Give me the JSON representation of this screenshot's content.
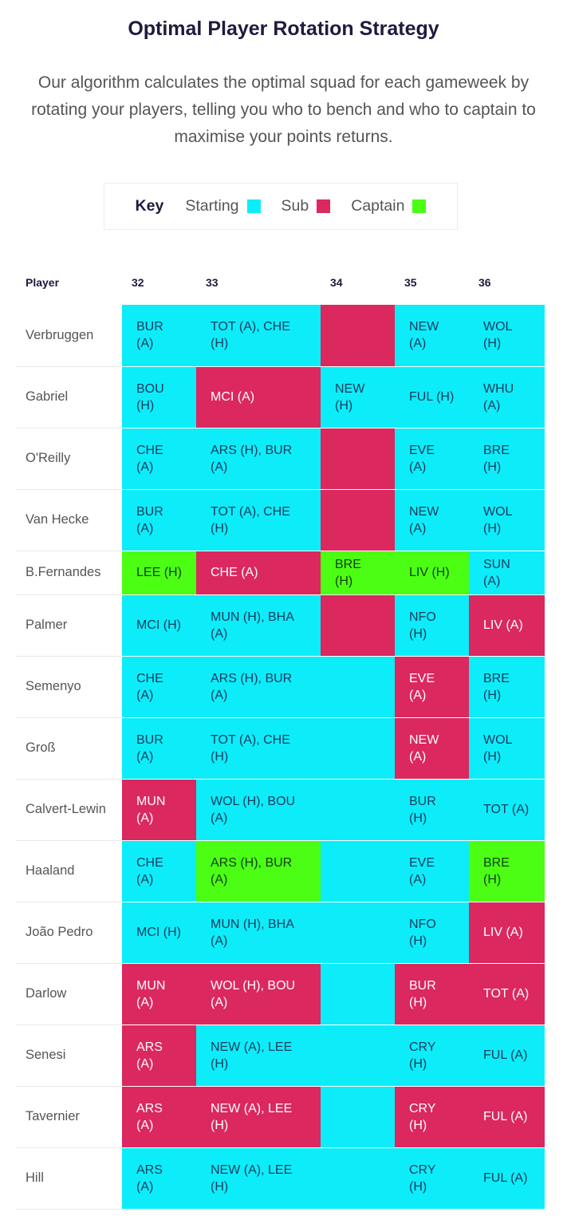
{
  "header": {
    "title": "Optimal Player Rotation Strategy",
    "description": "Our algorithm calculates the optimal squad for each gameweek by rotating your players, telling you who to bench and who to captain to maximise your points returns."
  },
  "key": {
    "label": "Key",
    "items": [
      {
        "label": "Starting",
        "color": "#0CEDF9"
      },
      {
        "label": "Sub",
        "color": "#DB285E"
      },
      {
        "label": "Captain",
        "color": "#4CFD14"
      }
    ]
  },
  "table": {
    "columns": [
      "Player",
      "32",
      "33",
      "34",
      "35",
      "36"
    ],
    "rows": [
      {
        "player": "Verbruggen",
        "cells": [
          {
            "text": "BUR (A)",
            "status": "start"
          },
          {
            "text": "TOT (A), CHE (H)",
            "status": "start"
          },
          {
            "text": "",
            "status": "sub"
          },
          {
            "text": "NEW (A)",
            "status": "start"
          },
          {
            "text": "WOL (H)",
            "status": "start"
          }
        ]
      },
      {
        "player": "Gabriel",
        "cells": [
          {
            "text": "BOU (H)",
            "status": "start"
          },
          {
            "text": "MCI (A)",
            "status": "sub"
          },
          {
            "text": "NEW (H)",
            "status": "start"
          },
          {
            "text": "FUL (H)",
            "status": "start"
          },
          {
            "text": "WHU (A)",
            "status": "start"
          }
        ]
      },
      {
        "player": "O'Reilly",
        "cells": [
          {
            "text": "CHE (A)",
            "status": "start"
          },
          {
            "text": "ARS (H), BUR (A)",
            "status": "start"
          },
          {
            "text": "",
            "status": "sub"
          },
          {
            "text": "EVE (A)",
            "status": "start"
          },
          {
            "text": "BRE (H)",
            "status": "start"
          }
        ]
      },
      {
        "player": "Van Hecke",
        "cells": [
          {
            "text": "BUR (A)",
            "status": "start"
          },
          {
            "text": "TOT (A), CHE (H)",
            "status": "start"
          },
          {
            "text": "",
            "status": "sub"
          },
          {
            "text": "NEW (A)",
            "status": "start"
          },
          {
            "text": "WOL (H)",
            "status": "start"
          }
        ]
      },
      {
        "player": "B.Fernandes",
        "cells": [
          {
            "text": "LEE (H)",
            "status": "cap"
          },
          {
            "text": "CHE (A)",
            "status": "sub"
          },
          {
            "text": "BRE (H)",
            "status": "cap"
          },
          {
            "text": "LIV (H)",
            "status": "cap"
          },
          {
            "text": "SUN (A)",
            "status": "start"
          }
        ]
      },
      {
        "player": "Palmer",
        "cells": [
          {
            "text": "MCI (H)",
            "status": "start"
          },
          {
            "text": "MUN (H), BHA (A)",
            "status": "start"
          },
          {
            "text": "",
            "status": "sub"
          },
          {
            "text": "NFO (H)",
            "status": "start"
          },
          {
            "text": "LIV (A)",
            "status": "sub"
          }
        ]
      },
      {
        "player": "Semenyo",
        "cells": [
          {
            "text": "CHE (A)",
            "status": "start"
          },
          {
            "text": "ARS (H), BUR (A)",
            "status": "start"
          },
          {
            "text": "",
            "status": "start"
          },
          {
            "text": "EVE (A)",
            "status": "sub"
          },
          {
            "text": "BRE (H)",
            "status": "start"
          }
        ]
      },
      {
        "player": "Groß",
        "cells": [
          {
            "text": "BUR (A)",
            "status": "start"
          },
          {
            "text": "TOT (A), CHE (H)",
            "status": "start"
          },
          {
            "text": "",
            "status": "start"
          },
          {
            "text": "NEW (A)",
            "status": "sub"
          },
          {
            "text": "WOL (H)",
            "status": "start"
          }
        ]
      },
      {
        "player": "Calvert-Lewin",
        "cells": [
          {
            "text": "MUN (A)",
            "status": "sub"
          },
          {
            "text": "WOL (H), BOU (A)",
            "status": "start"
          },
          {
            "text": "",
            "status": "start"
          },
          {
            "text": "BUR (H)",
            "status": "start"
          },
          {
            "text": "TOT (A)",
            "status": "start"
          }
        ]
      },
      {
        "player": "Haaland",
        "cells": [
          {
            "text": "CHE (A)",
            "status": "start"
          },
          {
            "text": "ARS (H), BUR (A)",
            "status": "cap"
          },
          {
            "text": "",
            "status": "start"
          },
          {
            "text": "EVE (A)",
            "status": "start"
          },
          {
            "text": "BRE (H)",
            "status": "cap"
          }
        ]
      },
      {
        "player": "João Pedro",
        "cells": [
          {
            "text": "MCI (H)",
            "status": "start"
          },
          {
            "text": "MUN (H), BHA (A)",
            "status": "start"
          },
          {
            "text": "",
            "status": "start"
          },
          {
            "text": "NFO (H)",
            "status": "start"
          },
          {
            "text": "LIV (A)",
            "status": "sub"
          }
        ]
      },
      {
        "player": "Darlow",
        "cells": [
          {
            "text": "MUN (A)",
            "status": "sub"
          },
          {
            "text": "WOL (H), BOU (A)",
            "status": "sub"
          },
          {
            "text": "",
            "status": "start"
          },
          {
            "text": "BUR (H)",
            "status": "sub"
          },
          {
            "text": "TOT (A)",
            "status": "sub"
          }
        ]
      },
      {
        "player": "Senesi",
        "cells": [
          {
            "text": "ARS (A)",
            "status": "sub"
          },
          {
            "text": "NEW (A), LEE (H)",
            "status": "start"
          },
          {
            "text": "",
            "status": "start"
          },
          {
            "text": "CRY (H)",
            "status": "start"
          },
          {
            "text": "FUL (A)",
            "status": "start"
          }
        ]
      },
      {
        "player": "Tavernier",
        "cells": [
          {
            "text": "ARS (A)",
            "status": "sub"
          },
          {
            "text": "NEW (A), LEE (H)",
            "status": "sub"
          },
          {
            "text": "",
            "status": "start"
          },
          {
            "text": "CRY (H)",
            "status": "sub"
          },
          {
            "text": "FUL (A)",
            "status": "sub"
          }
        ]
      },
      {
        "player": "Hill",
        "cells": [
          {
            "text": "ARS (A)",
            "status": "start"
          },
          {
            "text": "NEW (A), LEE (H)",
            "status": "start"
          },
          {
            "text": "",
            "status": "start"
          },
          {
            "text": "CRY (H)",
            "status": "start"
          },
          {
            "text": "FUL (A)",
            "status": "start"
          }
        ]
      }
    ]
  }
}
